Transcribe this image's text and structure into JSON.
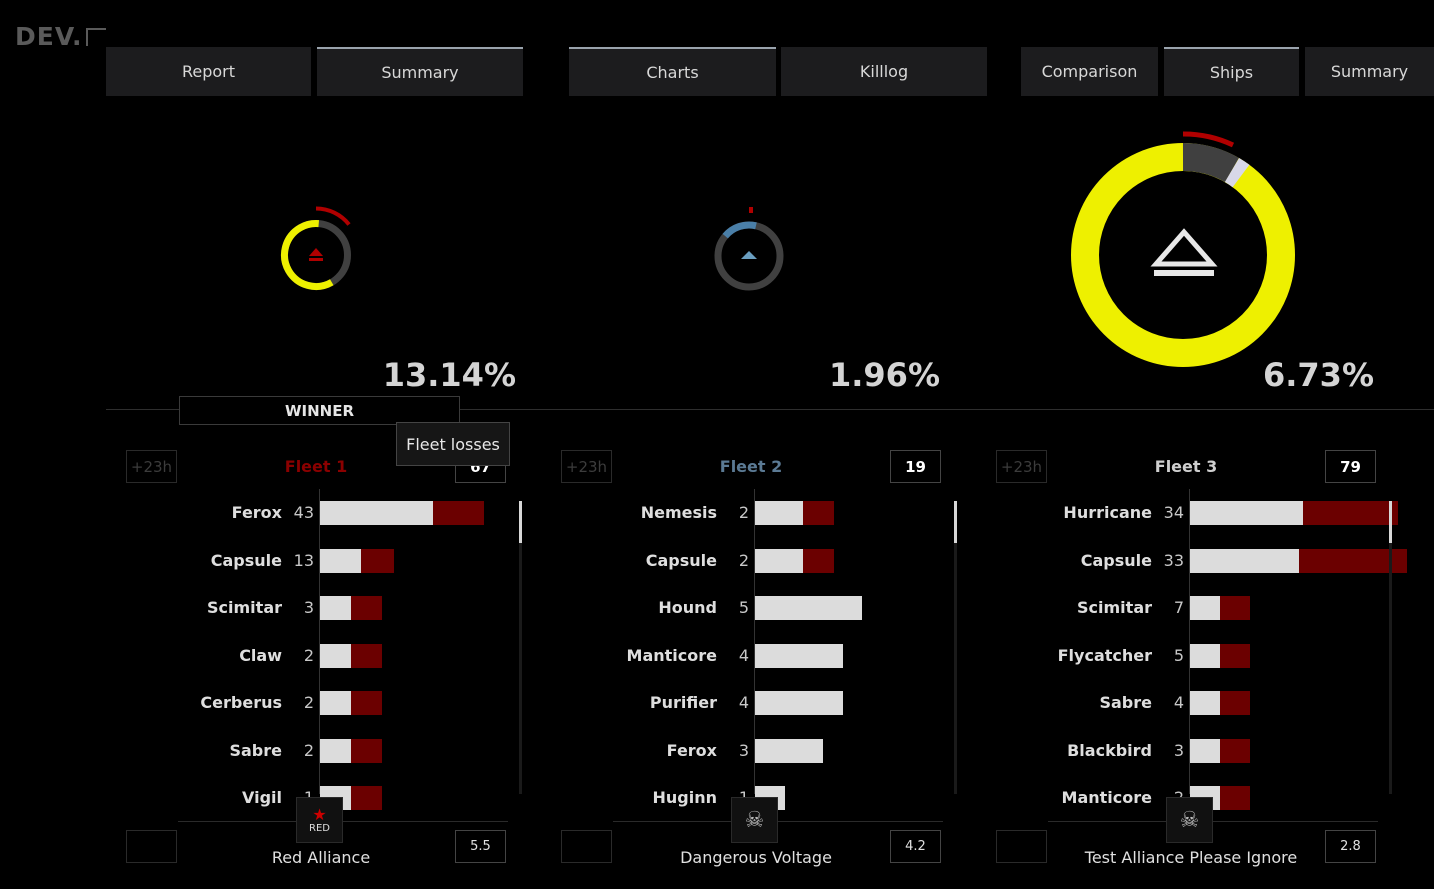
{
  "app": {
    "logo_text": "DEV.",
    "logo_icon": "corner-bracket-icon"
  },
  "tabs": [
    {
      "label": "Report",
      "active": false
    },
    {
      "label": "Summary",
      "active": true
    },
    {
      "label": "Charts",
      "active": true
    },
    {
      "label": "Killlog",
      "active": false
    },
    {
      "label": "Comparison",
      "active": false
    },
    {
      "label": "Ships",
      "active": true
    },
    {
      "label": "Summary",
      "active": false
    }
  ],
  "percentages": [
    "13.14%",
    "1.96%",
    "6.73%"
  ],
  "winner_label": "WINNER",
  "tooltip": "Fleet losses",
  "colors": {
    "yellow": "#eef000",
    "grey": "#404040",
    "red": "#b00000",
    "blue": "#4a7fa8",
    "bar_white": "#dcdcdc",
    "bar_red": "#6b0000"
  },
  "fleets": [
    {
      "time": "+23h",
      "name": "Fleet 1",
      "name_color": "#8b0000",
      "count": "67",
      "alliance": "Red Alliance",
      "score": "5.5",
      "logo_text": "RED",
      "ships": [
        {
          "name": "Ferox",
          "count": "43",
          "alive": 113,
          "lost": 51
        },
        {
          "name": "Capsule",
          "count": "13",
          "alive": 41,
          "lost": 33
        },
        {
          "name": "Scimitar",
          "count": "3",
          "alive": 31,
          "lost": 31
        },
        {
          "name": "Claw",
          "count": "2",
          "alive": 31,
          "lost": 31
        },
        {
          "name": "Cerberus",
          "count": "2",
          "alive": 31,
          "lost": 31
        },
        {
          "name": "Sabre",
          "count": "2",
          "alive": 31,
          "lost": 31
        },
        {
          "name": "Vigil",
          "count": "1",
          "alive": 31,
          "lost": 31
        }
      ]
    },
    {
      "time": "+23h",
      "name": "Fleet 2",
      "name_color": "#5b7a94",
      "count": "19",
      "alliance": "Dangerous Voltage",
      "score": "4.2",
      "logo_text": "",
      "ships": [
        {
          "name": "Nemesis",
          "count": "2",
          "alive": 48,
          "lost": 31
        },
        {
          "name": "Capsule",
          "count": "2",
          "alive": 48,
          "lost": 31
        },
        {
          "name": "Hound",
          "count": "5",
          "alive": 107,
          "lost": 0
        },
        {
          "name": "Manticore",
          "count": "4",
          "alive": 88,
          "lost": 0
        },
        {
          "name": "Purifier",
          "count": "4",
          "alive": 88,
          "lost": 0
        },
        {
          "name": "Ferox",
          "count": "3",
          "alive": 68,
          "lost": 0
        },
        {
          "name": "Huginn",
          "count": "1",
          "alive": 30,
          "lost": 0
        }
      ]
    },
    {
      "time": "+23h",
      "name": "Fleet 3",
      "name_color": "#cfcfcf",
      "count": "79",
      "alliance": "Test Alliance Please Ignore",
      "score": "2.8",
      "logo_text": "",
      "ships": [
        {
          "name": "Hurricane",
          "count": "34",
          "alive": 113,
          "lost": 95
        },
        {
          "name": "Capsule",
          "count": "33",
          "alive": 109,
          "lost": 108
        },
        {
          "name": "Scimitar",
          "count": "7",
          "alive": 30,
          "lost": 30
        },
        {
          "name": "Flycatcher",
          "count": "5",
          "alive": 30,
          "lost": 30
        },
        {
          "name": "Sabre",
          "count": "4",
          "alive": 30,
          "lost": 30
        },
        {
          "name": "Blackbird",
          "count": "3",
          "alive": 30,
          "lost": 30
        },
        {
          "name": "Manticore",
          "count": "2",
          "alive": 30,
          "lost": 30
        }
      ]
    }
  ]
}
